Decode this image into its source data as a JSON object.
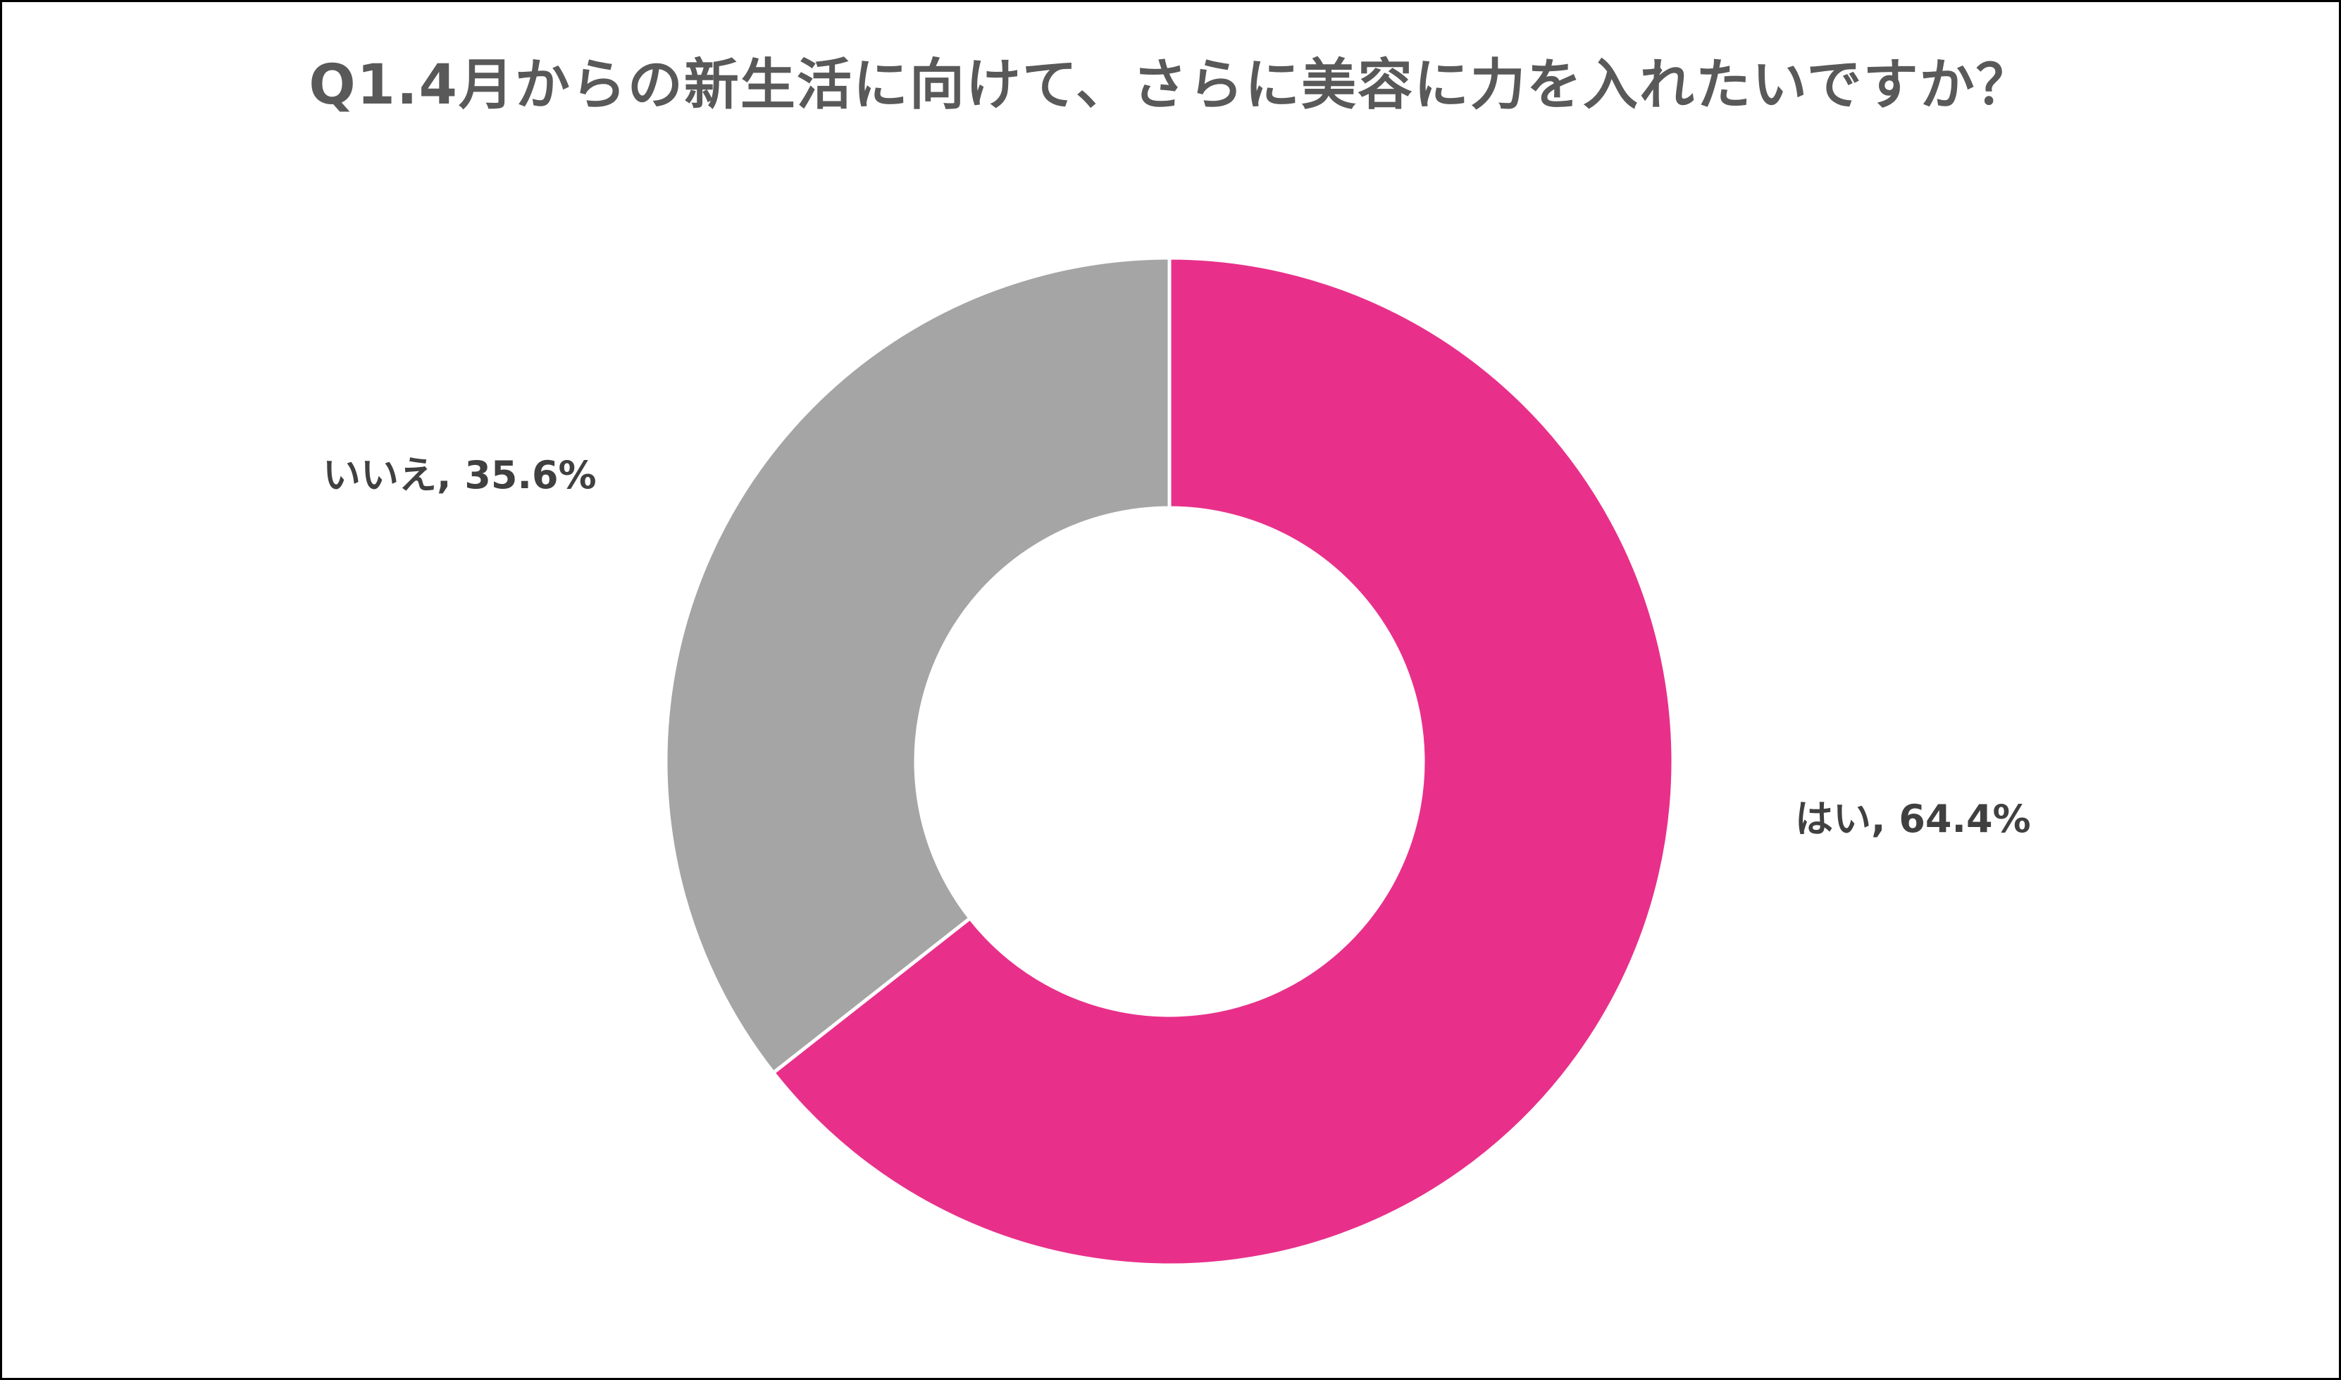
{
  "chart_data": {
    "type": "pie",
    "style": "donut",
    "title": "Q1.4月からの新生活に向けて、さらに美容に力を入れたいですか？",
    "slices": [
      {
        "name": "はい",
        "value": 64.4,
        "label": "はい, 64.4%",
        "color": "#E8308A"
      },
      {
        "name": "いいえ",
        "value": 35.6,
        "label": "いいえ, 35.6%",
        "color": "#A5A5A5"
      }
    ],
    "unit": "%",
    "legend": "none",
    "start_angle": "12 o'clock",
    "direction": "clockwise"
  }
}
